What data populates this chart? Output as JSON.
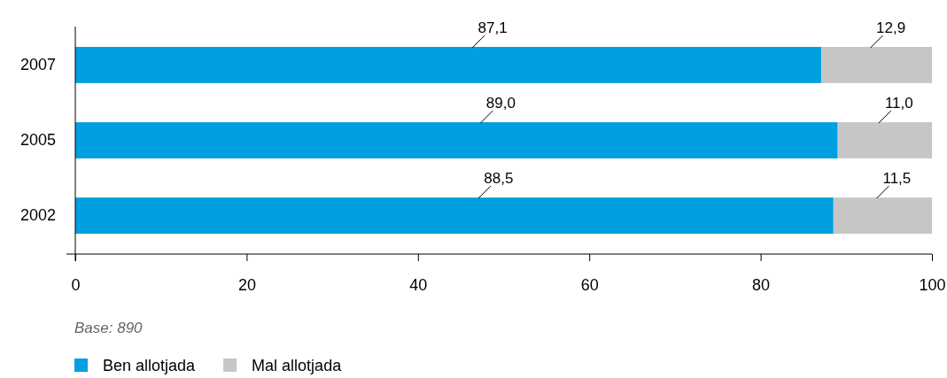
{
  "chart_data": {
    "type": "bar",
    "orientation": "horizontal",
    "stacked": true,
    "categories": [
      "2007",
      "2005",
      "2002"
    ],
    "series": [
      {
        "name": "Ben allotjada",
        "color": "#009fe0",
        "values": [
          87.1,
          89.0,
          88.5
        ],
        "value_labels": [
          "87,1",
          "89,0",
          "88,5"
        ]
      },
      {
        "name": "Mal allotjada",
        "color": "#c6c6c7",
        "values": [
          12.9,
          11.0,
          11.5
        ],
        "value_labels": [
          "12,9",
          "11,0",
          "11,5"
        ]
      }
    ],
    "xlim": [
      0,
      100
    ],
    "xticks": [
      0,
      20,
      40,
      60,
      80,
      100
    ],
    "grid": false,
    "legend": "bottom left",
    "annotations": [
      "Base: 890"
    ]
  }
}
